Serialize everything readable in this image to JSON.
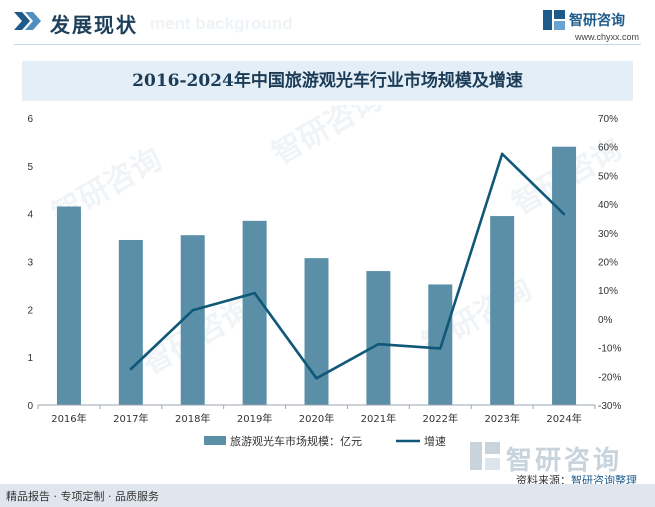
{
  "header": {
    "section_title": "发展现状",
    "ghost_text": "ment background",
    "brand_name": "智研咨询",
    "brand_url": "www.chyxx.com"
  },
  "chart_title": "2016-2024年中国旅游观光车行业市场规模及增速",
  "chart_data": {
    "type": "bar+line",
    "title": "2016-2024年中国旅游观光车行业市场规模及增速",
    "categories": [
      "2016年",
      "2017年",
      "2018年",
      "2019年",
      "2020年",
      "2021年",
      "2022年",
      "2023年",
      "2024年"
    ],
    "series": [
      {
        "name": "旅游观光车市场规模：亿元",
        "type": "bar",
        "axis": "left",
        "color": "#5b8fa8",
        "values": [
          4.15,
          3.45,
          3.55,
          3.85,
          3.07,
          2.8,
          2.52,
          3.95,
          5.4
        ]
      },
      {
        "name": "增速",
        "type": "line",
        "axis": "right",
        "color": "#0f5878",
        "values": [
          null,
          -17.5,
          3.0,
          9.0,
          -20.7,
          -8.8,
          -10.3,
          57.5,
          36.5
        ]
      }
    ],
    "y_left": {
      "ylim": [
        0,
        6
      ],
      "ticks": [
        "0",
        "1",
        "2",
        "3",
        "4",
        "5",
        "6"
      ]
    },
    "y_right": {
      "ylim": [
        -30,
        70
      ],
      "ticks": [
        "-30%",
        "-20%",
        "-10%",
        "0%",
        "10%",
        "20%",
        "30%",
        "40%",
        "50%",
        "60%",
        "70%"
      ]
    },
    "legend": {
      "position": "bottom",
      "entries": [
        "旅游观光车市场规模：亿元",
        "增速"
      ]
    },
    "grid": false
  },
  "watermark": "智研咨询",
  "source": {
    "prefix": "资料来源：",
    "text": "智研咨询整理"
  },
  "footer": {
    "tagline": "精品报告 · 专项定制 · 品质服务"
  }
}
